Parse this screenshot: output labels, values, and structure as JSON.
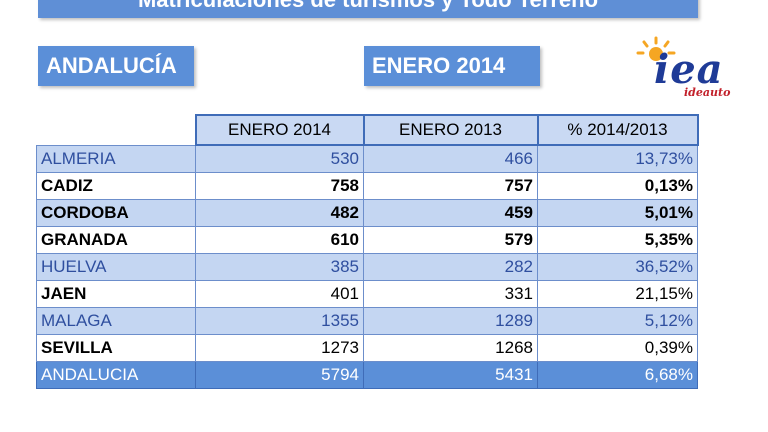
{
  "header": {
    "title": "Matriculaciones de turismos y Todo Terreno",
    "region": "ANDALUCÍA",
    "period": "ENERO 2014"
  },
  "logo": {
    "brand": "iea",
    "sub": "ideauto"
  },
  "table": {
    "columns": [
      "ENERO 2014",
      "ENERO  2013",
      "% 2014/2013"
    ],
    "rows": [
      {
        "name": "ALMERIA",
        "v2014": "530",
        "v2013": "466",
        "pct": "13,73%"
      },
      {
        "name": "CADIZ",
        "v2014": "758",
        "v2013": "757",
        "pct": "0,13%"
      },
      {
        "name": "CORDOBA",
        "v2014": "482",
        "v2013": "459",
        "pct": "5,01%"
      },
      {
        "name": "GRANADA",
        "v2014": "610",
        "v2013": "579",
        "pct": "5,35%"
      },
      {
        "name": "HUELVA",
        "v2014": "385",
        "v2013": "282",
        "pct": "36,52%"
      },
      {
        "name": "JAEN",
        "v2014": "401",
        "v2013": "331",
        "pct": "21,15%"
      },
      {
        "name": "MALAGA",
        "v2014": "1355",
        "v2013": "1289",
        "pct": "5,12%"
      },
      {
        "name": "SEVILLA",
        "v2014": "1273",
        "v2013": "1268",
        "pct": "0,39%"
      }
    ],
    "total": {
      "name": "ANDALUCIA",
      "v2014": "5794",
      "v2013": "5431",
      "pct": "6,68%"
    }
  }
}
